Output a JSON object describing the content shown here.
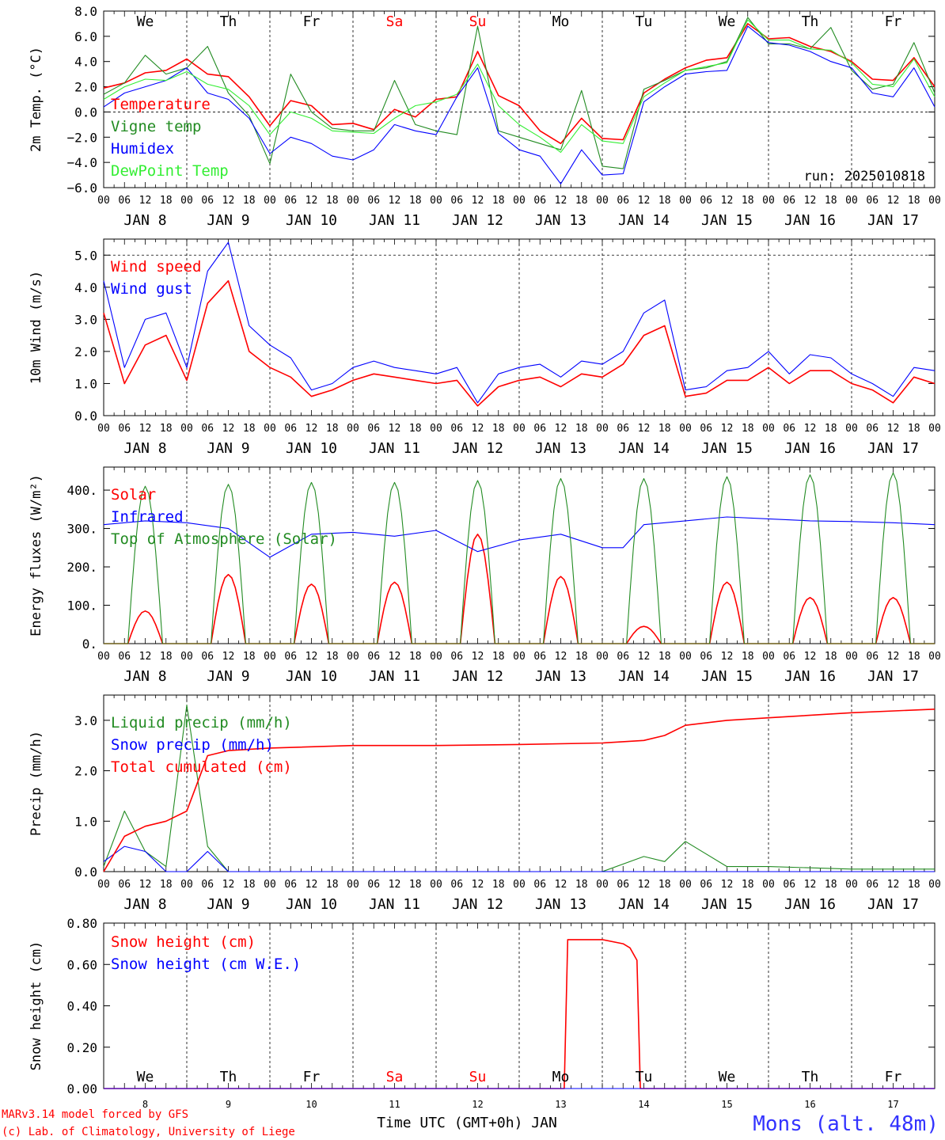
{
  "chart_data": [
    {
      "type": "line",
      "ylabel": "2m Temp. (°C)",
      "ylim": [
        -6,
        8
      ],
      "yticks": [
        "8.0",
        "6.0",
        "4.0",
        "2.0",
        "0.0",
        "−2.0",
        "−4.0",
        "−6.0"
      ],
      "ytick_values": [
        8,
        6,
        4,
        2,
        0,
        -2,
        -4,
        -6
      ],
      "zero_line": 0,
      "run_label": "run: 2025010818",
      "weekdays": [
        {
          "label": "We",
          "color": "#000000"
        },
        {
          "label": "Th",
          "color": "#000000"
        },
        {
          "label": "Fr",
          "color": "#000000"
        },
        {
          "label": "Sa",
          "color": "#ff0000"
        },
        {
          "label": "Su",
          "color": "#ff0000"
        },
        {
          "label": "Mo",
          "color": "#000000"
        },
        {
          "label": "Tu",
          "color": "#000000"
        },
        {
          "label": "We",
          "color": "#000000"
        },
        {
          "label": "Th",
          "color": "#000000"
        },
        {
          "label": "Fr",
          "color": "#000000"
        }
      ],
      "x_hours": [
        0,
        6,
        12,
        18,
        24,
        30,
        36,
        42,
        48,
        54,
        60,
        66,
        72,
        78,
        84,
        90,
        96,
        102,
        108,
        114,
        120,
        126,
        132,
        138,
        144,
        150,
        156,
        162,
        168,
        174,
        180,
        186,
        192,
        198,
        204,
        210,
        216,
        222,
        228,
        234,
        240
      ],
      "series": [
        {
          "name": "Temperature",
          "color": "#ff0000",
          "values": [
            1.9,
            2.3,
            3.1,
            3.3,
            4.2,
            3.0,
            2.8,
            1.2,
            -1.1,
            0.9,
            0.5,
            -1.0,
            -0.9,
            -1.4,
            0.2,
            -0.4,
            1.0,
            1.2,
            4.8,
            1.3,
            0.5,
            -1.5,
            -2.5,
            -0.5,
            -2.1,
            -2.2,
            1.5,
            2.6,
            3.5,
            4.1,
            4.3,
            7.0,
            5.8,
            5.9,
            5.2,
            4.8,
            4.0,
            2.6,
            2.5,
            4.3,
            2.0
          ]
        },
        {
          "name": "Vigne temp",
          "color": "#228b22",
          "values": [
            1.4,
            2.3,
            4.5,
            3.0,
            3.5,
            5.2,
            1.5,
            -0.3,
            -4.1,
            3.0,
            0.0,
            -1.3,
            -1.5,
            -1.5,
            2.5,
            -1.0,
            -1.5,
            -1.8,
            6.8,
            -1.5,
            -2.0,
            -2.5,
            -3.0,
            1.7,
            -4.3,
            -4.5,
            1.8,
            2.5,
            3.3,
            3.5,
            4.0,
            7.5,
            5.4,
            5.4,
            5.0,
            6.7,
            3.3,
            1.8,
            2.2,
            5.5,
            1.5
          ]
        },
        {
          "name": "Humidex",
          "color": "#0000ff",
          "values": [
            0.4,
            1.5,
            2.0,
            2.5,
            3.5,
            1.5,
            1.0,
            -0.5,
            -3.3,
            -2.0,
            -2.5,
            -3.5,
            -3.8,
            -3.0,
            -1.0,
            -1.5,
            -1.8,
            1.2,
            3.5,
            -1.7,
            -3.0,
            -3.5,
            -5.7,
            -3.0,
            -5.0,
            -4.9,
            0.8,
            2.0,
            3.0,
            3.2,
            3.3,
            6.8,
            5.5,
            5.3,
            4.8,
            4.0,
            3.5,
            1.5,
            1.2,
            3.5,
            0.4
          ]
        },
        {
          "name": "DewPoint Temp",
          "color": "#33ee33",
          "values": [
            1.0,
            2.0,
            2.6,
            2.5,
            3.2,
            2.2,
            1.8,
            0.5,
            -1.8,
            0.0,
            -0.5,
            -1.5,
            -1.6,
            -1.7,
            -0.5,
            0.5,
            0.8,
            1.4,
            3.8,
            0.5,
            -1.0,
            -2.0,
            -3.2,
            -1.0,
            -2.3,
            -2.5,
            1.2,
            2.3,
            3.3,
            3.6,
            3.9,
            7.3,
            5.7,
            5.7,
            5.0,
            4.9,
            3.9,
            2.2,
            2.0,
            4.2,
            1.2
          ]
        }
      ]
    },
    {
      "type": "line",
      "ylabel": "10m Wind (m/s)",
      "ylim": [
        0,
        5.5
      ],
      "yticks": [
        "5.0",
        "4.0",
        "3.0",
        "2.0",
        "1.0",
        "0.0"
      ],
      "ytick_values": [
        5,
        4,
        3,
        2,
        1,
        0
      ],
      "ref_line": 5,
      "x_hours": [
        0,
        6,
        12,
        18,
        24,
        30,
        36,
        42,
        48,
        54,
        60,
        66,
        72,
        78,
        84,
        90,
        96,
        102,
        108,
        114,
        120,
        126,
        132,
        138,
        144,
        150,
        156,
        162,
        168,
        174,
        180,
        186,
        192,
        198,
        204,
        210,
        216,
        222,
        228,
        234,
        240
      ],
      "series": [
        {
          "name": "Wind speed",
          "color": "#ff0000",
          "values": [
            3.2,
            1.0,
            2.2,
            2.5,
            1.1,
            3.5,
            4.2,
            2.0,
            1.5,
            1.2,
            0.6,
            0.8,
            1.1,
            1.3,
            1.2,
            1.1,
            1.0,
            1.1,
            0.3,
            0.9,
            1.1,
            1.2,
            0.9,
            1.3,
            1.2,
            1.6,
            2.5,
            2.8,
            0.6,
            0.7,
            1.1,
            1.1,
            1.5,
            1.0,
            1.4,
            1.4,
            1.0,
            0.8,
            0.4,
            1.2,
            1.0
          ]
        },
        {
          "name": "Wind gust",
          "color": "#0000ff",
          "values": [
            4.2,
            1.5,
            3.0,
            3.2,
            1.5,
            4.5,
            5.4,
            2.8,
            2.2,
            1.8,
            0.8,
            1.0,
            1.5,
            1.7,
            1.5,
            1.4,
            1.3,
            1.5,
            0.4,
            1.3,
            1.5,
            1.6,
            1.2,
            1.7,
            1.6,
            2.0,
            3.2,
            3.6,
            0.8,
            0.9,
            1.4,
            1.5,
            2.0,
            1.3,
            1.9,
            1.8,
            1.3,
            1.0,
            0.6,
            1.5,
            1.4
          ]
        }
      ]
    },
    {
      "type": "line",
      "ylabel": "Energy fluxes (W/m²)",
      "ylim": [
        0,
        460
      ],
      "yticks": [
        "400.",
        "300.",
        "200.",
        "100.",
        "0."
      ],
      "ytick_values": [
        400,
        300,
        200,
        100,
        0
      ],
      "daily": {
        "solar_peaks": [
          85,
          180,
          155,
          160,
          285,
          175,
          45,
          160,
          120,
          120
        ],
        "toa_peaks": [
          410,
          415,
          420,
          420,
          425,
          430,
          430,
          435,
          440,
          445
        ],
        "day_start_hour": 7,
        "day_end_hour": 17
      },
      "x_hours": [
        0,
        12,
        24,
        36,
        48,
        60,
        72,
        84,
        96,
        108,
        120,
        132,
        144,
        150,
        156,
        168,
        180,
        192,
        204,
        216,
        228,
        240
      ],
      "series": [
        {
          "name": "Solar",
          "color": "#ff0000"
        },
        {
          "name": "Infrared",
          "color": "#0000ff",
          "values": [
            310,
            320,
            315,
            300,
            225,
            285,
            290,
            280,
            295,
            240,
            270,
            285,
            250,
            250,
            310,
            320,
            330,
            325,
            320,
            318,
            315,
            310
          ]
        },
        {
          "name": "Top of Atmosphere (Solar)",
          "color": "#228b22"
        }
      ]
    },
    {
      "type": "line",
      "ylabel": "Precip (mm/h)",
      "ylim": [
        0,
        3.5
      ],
      "yticks": [
        "3.0",
        "2.0",
        "1.0",
        "0.0"
      ],
      "ytick_values": [
        3,
        2,
        1,
        0
      ],
      "x_hours": [
        0,
        6,
        12,
        18,
        24,
        30,
        36,
        48,
        72,
        96,
        120,
        144,
        156,
        162,
        168,
        180,
        192,
        216,
        240
      ],
      "series": [
        {
          "name": "Liquid precip (mm/h)",
          "color": "#228b22",
          "values": [
            0.1,
            1.2,
            0.4,
            0.1,
            3.3,
            0.5,
            0.0,
            0.0,
            0.0,
            0.0,
            0.0,
            0.0,
            0.3,
            0.2,
            0.6,
            0.1,
            0.1,
            0.05,
            0.05
          ]
        },
        {
          "name": "Snow precip (mm/h)",
          "color": "#0000ff",
          "values": [
            0.2,
            0.5,
            0.4,
            0.0,
            0.0,
            0.4,
            0.0,
            0.0,
            0.0,
            0.0,
            0.0,
            0.0,
            0.0,
            0.0,
            0.0,
            0.0,
            0.0,
            0.0,
            0.0
          ]
        },
        {
          "name": "Total cumulated (cm)",
          "color": "#ff0000",
          "values": [
            0.0,
            0.7,
            0.9,
            1.0,
            1.2,
            2.3,
            2.4,
            2.45,
            2.5,
            2.5,
            2.52,
            2.55,
            2.6,
            2.7,
            2.9,
            3.0,
            3.05,
            3.15,
            3.22
          ]
        }
      ]
    },
    {
      "type": "line",
      "ylabel": "Snow height (cm)",
      "ylim": [
        0,
        0.8
      ],
      "yticks": [
        "0.80",
        "0.60",
        "0.40",
        "0.20",
        "0.00"
      ],
      "ytick_values": [
        0.8,
        0.6,
        0.4,
        0.2,
        0
      ],
      "bottom_weekdays": [
        {
          "label": "We",
          "color": "#000000"
        },
        {
          "label": "Th",
          "color": "#000000"
        },
        {
          "label": "Fr",
          "color": "#000000"
        },
        {
          "label": "Sa",
          "color": "#ff0000"
        },
        {
          "label": "Su",
          "color": "#ff0000"
        },
        {
          "label": "Mo",
          "color": "#000000"
        },
        {
          "label": "Tu",
          "color": "#000000"
        },
        {
          "label": "We",
          "color": "#000000"
        },
        {
          "label": "Th",
          "color": "#000000"
        },
        {
          "label": "Fr",
          "color": "#000000"
        }
      ],
      "bottom_days": [
        "8",
        "9",
        "10",
        "11",
        "12",
        "13",
        "14",
        "15",
        "16",
        "17"
      ],
      "x_hours": [
        0,
        133,
        134,
        144,
        150,
        152,
        154,
        155,
        240
      ],
      "series": [
        {
          "name": "Snow height (cm)",
          "color": "#ff0000",
          "values": [
            0,
            0,
            0.72,
            0.72,
            0.7,
            0.68,
            0.62,
            0,
            0
          ]
        },
        {
          "name": "Snow height (cm W.E.)",
          "color": "#0000ff",
          "values": [
            0,
            0,
            0,
            0,
            0,
            0,
            0,
            0,
            0
          ]
        }
      ]
    }
  ],
  "x_axis": {
    "hour_labels": [
      "00",
      "06",
      "12",
      "18"
    ],
    "end_label": "00",
    "day_labels": [
      "JAN   8",
      "JAN   9",
      "JAN  10",
      "JAN  11",
      "JAN  12",
      "JAN  13",
      "JAN  14",
      "JAN  15",
      "JAN  16",
      "JAN  17"
    ],
    "total_hours": 240
  },
  "footer": {
    "credit_line1": "MARv3.14 model forced by GFS",
    "credit_line2": "(c) Lab. of Climatology, University of Liege",
    "xlabel": "Time UTC (GMT+0h) JAN",
    "location": "Mons (alt. 48m)"
  },
  "colors": {
    "text": "#000000",
    "footer_red": "#ff0000",
    "location_blue": "#3333ff"
  }
}
